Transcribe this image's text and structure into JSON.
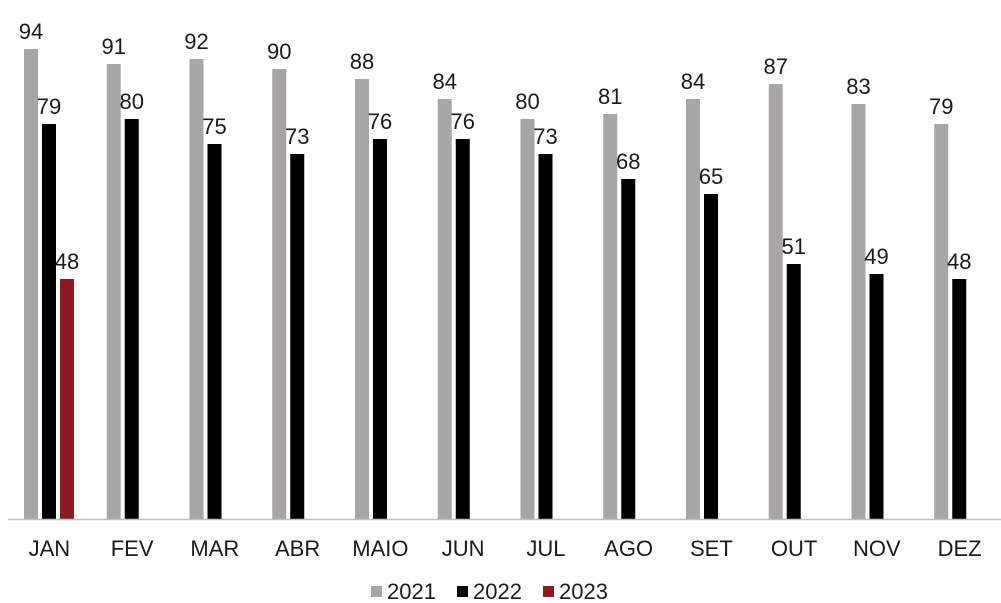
{
  "chart_data": {
    "type": "bar",
    "categories": [
      "JAN",
      "FEV",
      "MAR",
      "ABR",
      "MAIO",
      "JUN",
      "JUL",
      "AGO",
      "SET",
      "OUT",
      "NOV",
      "DEZ"
    ],
    "series": [
      {
        "name": "2021",
        "color": "#a8a5a6",
        "values": [
          94,
          91,
          92,
          90,
          88,
          84,
          80,
          81,
          84,
          87,
          83,
          79
        ]
      },
      {
        "name": "2022",
        "color": "#000000",
        "values": [
          79,
          80,
          75,
          73,
          76,
          76,
          73,
          68,
          65,
          51,
          49,
          48
        ]
      },
      {
        "name": "2023",
        "color": "#8b1a22",
        "values": [
          48,
          null,
          null,
          null,
          null,
          null,
          null,
          null,
          null,
          null,
          null,
          null
        ]
      }
    ],
    "ylim": [
      0,
      100
    ],
    "grid": false,
    "legend_position": "bottom-center",
    "data_labels": true,
    "title": "",
    "xlabel": "",
    "ylabel": ""
  }
}
